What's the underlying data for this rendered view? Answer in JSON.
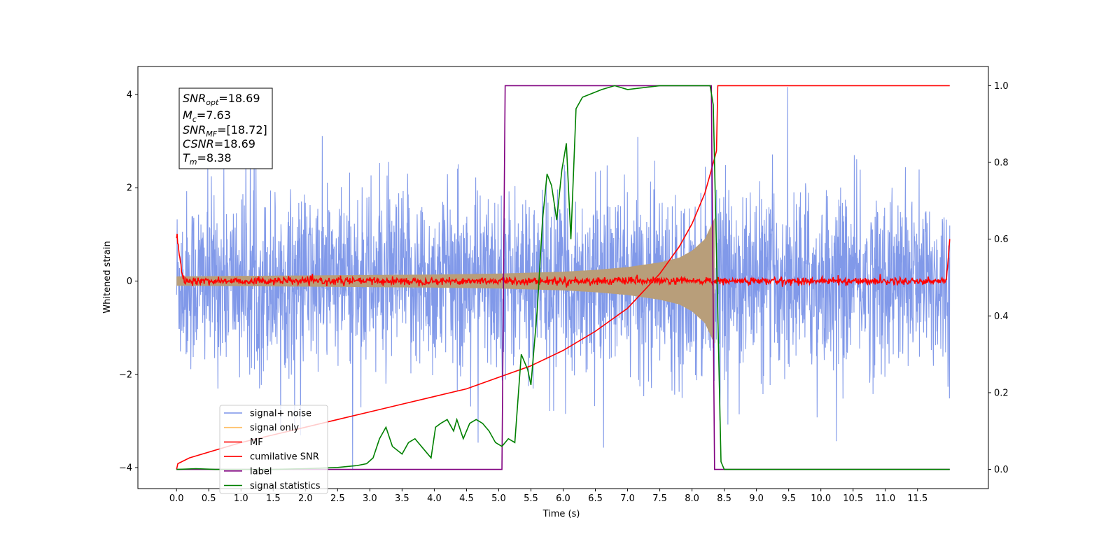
{
  "chart_data": {
    "type": "line",
    "xlabel": "Time (s)",
    "ylabel": "Whitened strain",
    "xlim": [
      -0.6,
      12.6
    ],
    "ylim": [
      -4.45,
      4.6
    ],
    "y2lim": [
      -0.05,
      1.05
    ],
    "x_ticks": [
      "0.0",
      "0.5",
      "1.0",
      "1.5",
      "2.0",
      "2.5",
      "3.0",
      "3.5",
      "4.0",
      "4.5",
      "5.0",
      "5.5",
      "6.0",
      "6.5",
      "7.0",
      "7.5",
      "8.0",
      "8.5",
      "9.0",
      "9.5",
      "10.0",
      "10.5",
      "11.0",
      "11.5"
    ],
    "x_tick_values": [
      0,
      0.5,
      1,
      1.5,
      2,
      2.5,
      3,
      3.5,
      4,
      4.5,
      5,
      5.5,
      6,
      6.5,
      7,
      7.5,
      8,
      8.5,
      9,
      9.5,
      10,
      10.5,
      11,
      11.5
    ],
    "y_ticks": [
      "−4",
      "−2",
      "0",
      "2",
      "4"
    ],
    "y_tick_values": [
      -4,
      -2,
      0,
      2,
      4
    ],
    "y2_ticks": [
      "0.0",
      "0.2",
      "0.4",
      "0.6",
      "0.8",
      "1.0"
    ],
    "y2_tick_values": [
      0,
      0.2,
      0.4,
      0.6,
      0.8,
      1.0
    ],
    "grid": false,
    "legend_placement": "lower-left",
    "annotation": {
      "snr_opt": {
        "base": "SNR",
        "sub": "opt",
        "value": "=18.69"
      },
      "mc": {
        "base": "M",
        "sub": "c",
        "value": "=7.63"
      },
      "snr_mf": {
        "base": "SNR",
        "sub": "MF",
        "value": "=[18.72]"
      },
      "csnr": {
        "base": "CSNR",
        "value": "=18.69"
      },
      "tm": {
        "base": "T",
        "sub": "m",
        "value": "=8.38"
      }
    },
    "series": [
      {
        "name": "signal+ noise",
        "color": "#7a94e8",
        "axis": "left",
        "description_envelope": {
          "x_start": 0.0,
          "x_end": 12.0,
          "typical_peak": 2.5,
          "max_peak": 4.2,
          "min_peak": -4.05
        }
      },
      {
        "name": "signal only",
        "color": "#ffbf66",
        "axis": "left",
        "envelope": {
          "x": [
            0,
            1,
            2,
            3,
            4,
            5,
            5.5,
            6,
            6.5,
            7,
            7.5,
            7.8,
            8.0,
            8.2,
            8.35
          ],
          "amp": [
            0.1,
            0.11,
            0.12,
            0.13,
            0.14,
            0.16,
            0.18,
            0.2,
            0.24,
            0.3,
            0.4,
            0.5,
            0.65,
            0.9,
            1.35
          ]
        }
      },
      {
        "name": "MF",
        "color": "#ff0000",
        "axis": "left",
        "points": {
          "x": [
            0,
            0.02,
            0.05,
            0.1,
            11.95,
            11.98,
            12.0
          ],
          "y": [
            1.0,
            0.3,
            0.05,
            0.0,
            0.05,
            0.25,
            0.9
          ]
        }
      },
      {
        "name": "cumilative SNR",
        "color": "#ff0000",
        "axis": "right",
        "x": [
          0,
          0.02,
          0.2,
          0.5,
          1.0,
          1.5,
          2.0,
          2.5,
          3.0,
          3.5,
          4.0,
          4.5,
          5.0,
          5.5,
          6.0,
          6.5,
          7.0,
          7.5,
          7.8,
          8.0,
          8.2,
          8.3,
          8.38,
          8.4,
          12.0
        ],
        "y": [
          0.0,
          0.015,
          0.03,
          0.045,
          0.07,
          0.09,
          0.11,
          0.13,
          0.15,
          0.17,
          0.19,
          0.21,
          0.24,
          0.27,
          0.31,
          0.36,
          0.42,
          0.51,
          0.58,
          0.64,
          0.72,
          0.78,
          0.83,
          1.0,
          1.0
        ]
      },
      {
        "name": "label",
        "color": "#800080",
        "axis": "right",
        "x": [
          0,
          5.05,
          5.1,
          8.3,
          8.35,
          12.0
        ],
        "y": [
          0,
          0,
          1,
          1,
          0,
          0
        ]
      },
      {
        "name": "signal statistics",
        "color": "#008000",
        "axis": "right",
        "x": [
          0,
          0.3,
          0.6,
          1.0,
          1.5,
          2.0,
          2.5,
          2.8,
          2.95,
          3.05,
          3.15,
          3.25,
          3.35,
          3.5,
          3.6,
          3.7,
          3.85,
          3.95,
          4.02,
          4.1,
          4.2,
          4.3,
          4.35,
          4.45,
          4.55,
          4.65,
          4.75,
          4.85,
          4.95,
          5.05,
          5.15,
          5.25,
          5.35,
          5.45,
          5.5,
          5.6,
          5.68,
          5.75,
          5.82,
          5.9,
          5.98,
          6.05,
          6.12,
          6.2,
          6.3,
          6.45,
          6.6,
          6.8,
          7.0,
          7.5,
          8.0,
          8.28,
          8.33,
          8.45,
          8.5,
          12.0
        ],
        "y": [
          0.0,
          0.002,
          0.0,
          0.0,
          0.0,
          0.002,
          0.005,
          0.01,
          0.015,
          0.03,
          0.08,
          0.11,
          0.06,
          0.04,
          0.07,
          0.08,
          0.05,
          0.03,
          0.11,
          0.12,
          0.13,
          0.1,
          0.13,
          0.08,
          0.12,
          0.13,
          0.12,
          0.1,
          0.07,
          0.06,
          0.08,
          0.07,
          0.3,
          0.26,
          0.22,
          0.42,
          0.65,
          0.77,
          0.74,
          0.65,
          0.78,
          0.85,
          0.6,
          0.94,
          0.97,
          0.98,
          0.99,
          1.0,
          0.99,
          1.0,
          1.0,
          1.0,
          0.95,
          0.02,
          0.0,
          0.0
        ]
      }
    ]
  }
}
